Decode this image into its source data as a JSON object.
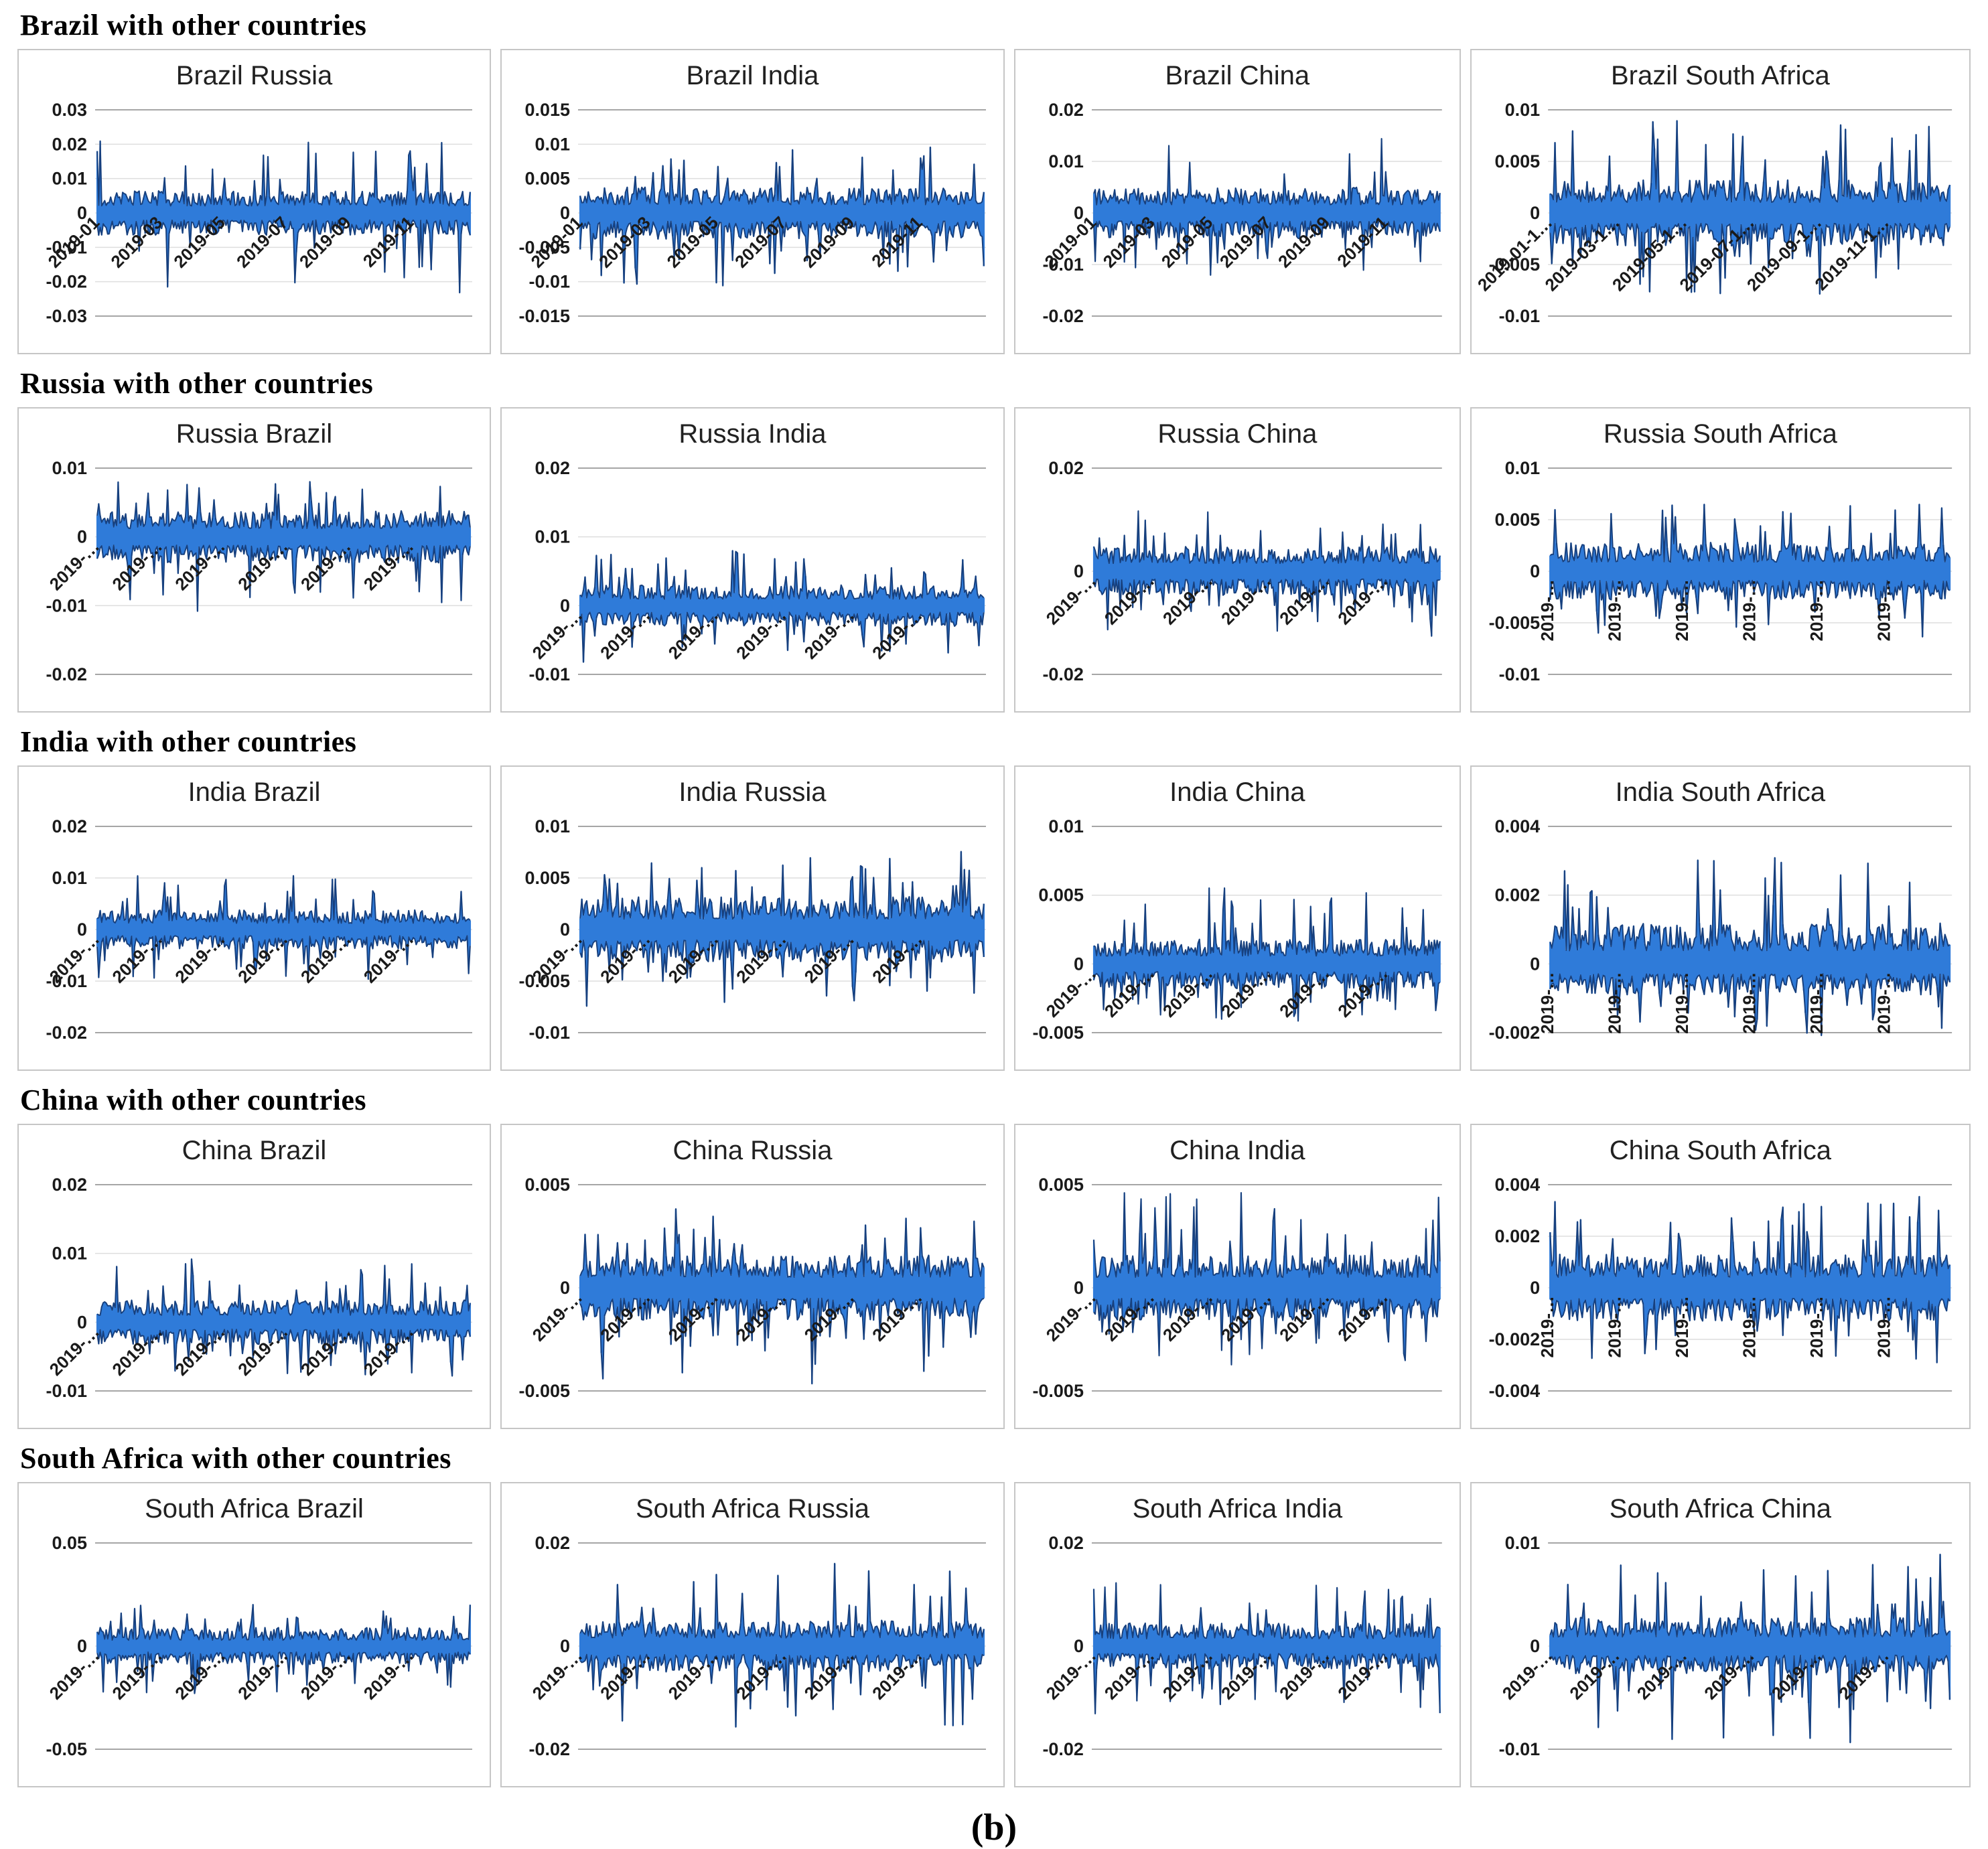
{
  "caption": "(b)",
  "colors": {
    "bar_fill": "#2f7bd9",
    "bar_edge": "#17407e",
    "grid_major": "#a6a6a6",
    "grid_minor": "#dedede",
    "panel_border": "#c6c6c6",
    "title_text": "#212121",
    "axis_text": "#1a1a1a"
  },
  "sections": [
    {
      "header": "Brazil with other countries"
    },
    {
      "header": "Russia with other countries"
    },
    {
      "header": "India with other countries"
    },
    {
      "header": "China with other countries"
    },
    {
      "header": "South Africa with other countries"
    }
  ],
  "chart_data": [
    {
      "type": "bar",
      "title": "Brazil Russia",
      "ylabel": "",
      "xlabel": "",
      "y_ticks": [
        0.03,
        0.02,
        0.01,
        0,
        -0.01,
        -0.02,
        -0.03
      ],
      "ylim": [
        -0.03,
        0.03
      ],
      "x_labels": [
        "2019-01",
        "2019-03",
        "2019-05",
        "2019-07",
        "2019-09",
        "2019-11"
      ],
      "x_rotation": 45,
      "n": 250,
      "band": 0.0065,
      "spike": 0.021,
      "spike_lo": 0.024,
      "seed": 11
    },
    {
      "type": "bar",
      "title": "Brazil India",
      "ylabel": "",
      "xlabel": "",
      "y_ticks": [
        0.015,
        0.01,
        0.005,
        0,
        -0.005,
        -0.01,
        -0.015
      ],
      "ylim": [
        -0.015,
        0.015
      ],
      "x_labels": [
        "2019-01",
        "2019-03",
        "2019-05",
        "2019-07",
        "2019-09",
        "2019-11"
      ],
      "x_rotation": 45,
      "n": 250,
      "band": 0.0038,
      "spike": 0.0098,
      "spike_lo": 0.011,
      "seed": 12
    },
    {
      "type": "bar",
      "title": "Brazil China",
      "ylabel": "",
      "xlabel": "",
      "y_ticks": [
        0.02,
        0.01,
        0,
        -0.01,
        -0.02
      ],
      "ylim": [
        -0.02,
        0.02
      ],
      "x_labels": [
        "2019-01",
        "2019-03",
        "2019-05",
        "2019-07",
        "2019-09",
        "2019-11"
      ],
      "x_rotation": 45,
      "n": 250,
      "band": 0.005,
      "spike": 0.016,
      "spike_lo": 0.013,
      "seed": 13
    },
    {
      "type": "bar",
      "title": "Brazil South Africa",
      "ylabel": "",
      "xlabel": "",
      "y_ticks": [
        0.01,
        0.005,
        0,
        -0.005,
        -0.01
      ],
      "ylim": [
        -0.01,
        0.01
      ],
      "x_labels": [
        "2019-01-1…",
        "2019-03-1…",
        "2019-05-1…",
        "2019-07-1…",
        "2019-09-1…",
        "2019-11-1…"
      ],
      "x_rotation": 45,
      "n": 250,
      "band": 0.0032,
      "spike": 0.0092,
      "spike_lo": 0.008,
      "seed": 14
    },
    {
      "type": "bar",
      "title": "Russia Brazil",
      "ylabel": "",
      "xlabel": "",
      "y_ticks": [
        0.01,
        0,
        -0.01,
        -0.02
      ],
      "ylim": [
        -0.02,
        0.01
      ],
      "x_labels": [
        "2019-…",
        "2019-…",
        "2019-…",
        "2019-…",
        "2019-…",
        "2019-…"
      ],
      "x_rotation": 45,
      "n": 250,
      "band": 0.0038,
      "spike": 0.0088,
      "spike_lo": 0.011,
      "seed": 15
    },
    {
      "type": "bar",
      "title": "Russia India",
      "ylabel": "",
      "xlabel": "",
      "y_ticks": [
        0.02,
        0.01,
        0,
        -0.01
      ],
      "ylim": [
        -0.01,
        0.02
      ],
      "x_labels": [
        "2019-…",
        "2019-…",
        "2019-…",
        "2019-…",
        "2019-…",
        "2019-…"
      ],
      "x_rotation": 45,
      "n": 250,
      "band": 0.003,
      "spike": 0.0085,
      "spike_lo": 0.0085,
      "seed": 16
    },
    {
      "type": "bar",
      "title": "Russia China",
      "ylabel": "",
      "xlabel": "",
      "y_ticks": [
        0.02,
        0,
        -0.02
      ],
      "ylim": [
        -0.02,
        0.02
      ],
      "x_labels": [
        "2019-…",
        "2019-…",
        "2019-…",
        "2019-…",
        "2019-…",
        "2019-…"
      ],
      "x_rotation": 45,
      "n": 250,
      "band": 0.0048,
      "spike": 0.012,
      "spike_lo": 0.013,
      "seed": 17
    },
    {
      "type": "bar",
      "title": "Russia South Africa",
      "ylabel": "",
      "xlabel": "",
      "y_ticks": [
        0.01,
        0.005,
        0,
        -0.005,
        -0.01
      ],
      "ylim": [
        -0.01,
        0.01
      ],
      "x_labels": [
        "2019-…",
        "2019-…",
        "2019-…",
        "2019-…",
        "2019-…",
        "2019-…"
      ],
      "x_rotation": 90,
      "n": 250,
      "band": 0.0028,
      "spike": 0.0068,
      "spike_lo": 0.0066,
      "seed": 18
    },
    {
      "type": "bar",
      "title": "India Brazil",
      "ylabel": "",
      "xlabel": "",
      "y_ticks": [
        0.02,
        0.01,
        0,
        -0.01,
        -0.02
      ],
      "ylim": [
        -0.02,
        0.02
      ],
      "x_labels": [
        "2019-…",
        "2019-…",
        "2019-…",
        "2019-…",
        "2019-…",
        "2019-…"
      ],
      "x_rotation": 45,
      "n": 250,
      "band": 0.0038,
      "spike": 0.0105,
      "spike_lo": 0.01,
      "seed": 19
    },
    {
      "type": "bar",
      "title": "India Russia",
      "ylabel": "",
      "xlabel": "",
      "y_ticks": [
        0.01,
        0.005,
        0,
        -0.005,
        -0.01
      ],
      "ylim": [
        -0.01,
        0.01
      ],
      "x_labels": [
        "2019-…",
        "2019-…",
        "2019-…",
        "2019-…",
        "2019-…",
        "2019-…"
      ],
      "x_rotation": 45,
      "n": 250,
      "band": 0.0032,
      "spike": 0.0078,
      "spike_lo": 0.0075,
      "seed": 20
    },
    {
      "type": "bar",
      "title": "India China",
      "ylabel": "",
      "xlabel": "",
      "y_ticks": [
        0.01,
        0.005,
        0,
        -0.005
      ],
      "ylim": [
        -0.005,
        0.01
      ],
      "x_labels": [
        "2019-…",
        "2019-…",
        "2019-…",
        "2019-…",
        "2019-…",
        "2019-…"
      ],
      "x_rotation": 45,
      "n": 250,
      "band": 0.0018,
      "spike": 0.0056,
      "spike_lo": 0.0042,
      "seed": 21
    },
    {
      "type": "bar",
      "title": "India South Africa",
      "ylabel": "",
      "xlabel": "",
      "y_ticks": [
        0.004,
        0.002,
        0,
        -0.002
      ],
      "ylim": [
        -0.002,
        0.004
      ],
      "x_labels": [
        "2019-…",
        "2019-…",
        "2019-…",
        "2019-…",
        "2019-…",
        "2019-…"
      ],
      "x_rotation": 90,
      "n": 250,
      "band": 0.0012,
      "band_lo": 0.0009,
      "spike": 0.0031,
      "spike_lo": 0.0022,
      "seed": 22
    },
    {
      "type": "bar",
      "title": "China Brazil",
      "ylabel": "",
      "xlabel": "",
      "y_ticks": [
        0.02,
        0.01,
        0,
        -0.01
      ],
      "ylim": [
        -0.01,
        0.02
      ],
      "x_labels": [
        "2019-…",
        "2019-…",
        "2019-…",
        "2019-…",
        "2019-…",
        "2019-…"
      ],
      "x_rotation": 45,
      "n": 250,
      "band": 0.0032,
      "spike": 0.0102,
      "spike_lo": 0.0082,
      "seed": 23
    },
    {
      "type": "bar",
      "title": "China Russia",
      "ylabel": "",
      "xlabel": "",
      "y_ticks": [
        0.005,
        0,
        -0.005
      ],
      "ylim": [
        -0.005,
        0.005
      ],
      "x_labels": [
        "2019-…",
        "2019-…",
        "2019-…",
        "2019-…",
        "2019-…",
        "2019-…"
      ],
      "x_rotation": 45,
      "n": 250,
      "band": 0.0016,
      "spike": 0.004,
      "spike_lo": 0.0048,
      "seed": 24
    },
    {
      "type": "bar",
      "title": "China India",
      "ylabel": "",
      "xlabel": "",
      "y_ticks": [
        0.005,
        0,
        -0.005
      ],
      "ylim": [
        -0.005,
        0.005
      ],
      "x_labels": [
        "2019-…",
        "2019-…",
        "2019-…",
        "2019-…",
        "2019-…",
        "2019-…"
      ],
      "x_rotation": 45,
      "n": 250,
      "band": 0.0016,
      "spike": 0.0047,
      "spike_lo": 0.0038,
      "seed": 25
    },
    {
      "type": "bar",
      "title": "China South Africa",
      "ylabel": "",
      "xlabel": "",
      "y_ticks": [
        0.004,
        0.002,
        0,
        -0.002,
        -0.004
      ],
      "ylim": [
        -0.004,
        0.004
      ],
      "x_labels": [
        "2019-…",
        "2019-…",
        "2019-…",
        "2019-…",
        "2019-…",
        "2019-…"
      ],
      "x_rotation": 90,
      "n": 250,
      "band": 0.0013,
      "spike": 0.0036,
      "spike_lo": 0.003,
      "seed": 26
    },
    {
      "type": "bar",
      "title": "South Africa Brazil",
      "ylabel": "",
      "xlabel": "",
      "y_ticks": [
        0.05,
        0,
        -0.05
      ],
      "ylim": [
        -0.05,
        0.05
      ],
      "x_labels": [
        "2019-…",
        "2019-…",
        "2019-…",
        "2019-…",
        "2019-…",
        "2019-…"
      ],
      "x_rotation": 45,
      "n": 250,
      "band": 0.009,
      "spike": 0.021,
      "spike_lo": 0.023,
      "seed": 27
    },
    {
      "type": "bar",
      "title": "South Africa Russia",
      "ylabel": "",
      "xlabel": "",
      "y_ticks": [
        0.02,
        0,
        -0.02
      ],
      "ylim": [
        -0.02,
        0.02
      ],
      "x_labels": [
        "2019-…",
        "2019-…",
        "2019-…",
        "2019-…",
        "2019-…",
        "2019-…"
      ],
      "x_rotation": 45,
      "n": 250,
      "band": 0.005,
      "spike": 0.0165,
      "spike_lo": 0.016,
      "seed": 28
    },
    {
      "type": "bar",
      "title": "South Africa India",
      "ylabel": "",
      "xlabel": "",
      "y_ticks": [
        0.02,
        0,
        -0.02
      ],
      "ylim": [
        -0.02,
        0.02
      ],
      "x_labels": [
        "2019-…",
        "2019-…",
        "2019-…",
        "2019-…",
        "2019-…",
        "2019-…"
      ],
      "x_rotation": 45,
      "n": 250,
      "band": 0.0045,
      "spike": 0.0125,
      "spike_lo": 0.014,
      "seed": 29
    },
    {
      "type": "bar",
      "title": "South Africa China",
      "ylabel": "",
      "xlabel": "",
      "y_ticks": [
        0.01,
        0,
        -0.01
      ],
      "ylim": [
        -0.01,
        0.01
      ],
      "x_labels": [
        "2019-…",
        "2019-…",
        "2019-…",
        "2019-…",
        "2019-…",
        "2019-…"
      ],
      "x_rotation": 45,
      "n": 250,
      "band": 0.0028,
      "spike": 0.009,
      "spike_lo": 0.0095,
      "seed": 30
    }
  ]
}
